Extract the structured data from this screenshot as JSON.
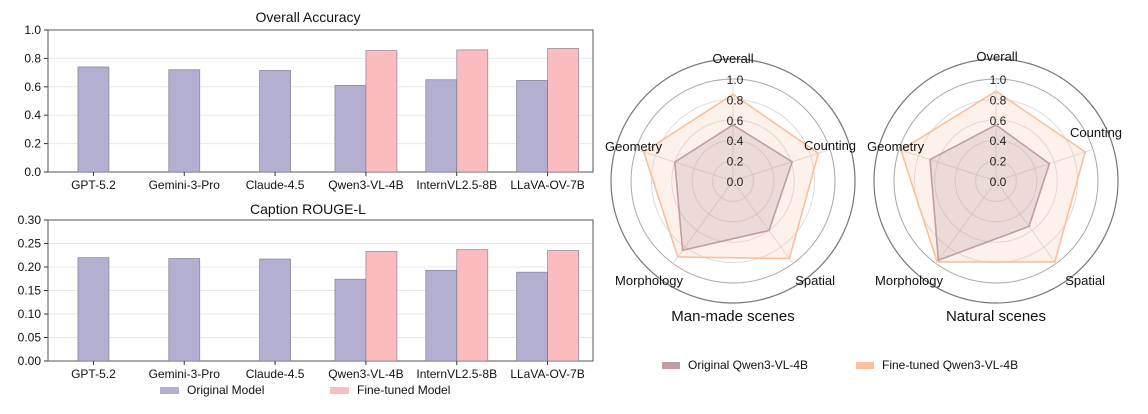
{
  "chart_data": [
    {
      "type": "bar",
      "title": "Overall Accuracy",
      "categories": [
        "GPT-5.2",
        "Gemini-3-Pro",
        "Claude-4.5",
        "Qwen3-VL-4B",
        "InternVL2.5-8B",
        "LLaVA-OV-7B"
      ],
      "series": [
        {
          "name": "Original Model",
          "color": "#b3afd0",
          "values": [
            0.74,
            0.72,
            0.715,
            0.61,
            0.65,
            0.645
          ]
        },
        {
          "name": "Fine-tuned Model",
          "color": "#fbbcbf",
          "values": [
            null,
            null,
            null,
            0.855,
            0.86,
            0.87
          ]
        }
      ],
      "ylim": [
        0,
        1.0
      ],
      "yticks": [
        "0.0",
        "0.2",
        "0.4",
        "0.6",
        "0.8",
        "1.0"
      ],
      "ytick_values": [
        0,
        0.2,
        0.4,
        0.6,
        0.8,
        1.0
      ]
    },
    {
      "type": "bar",
      "title": "Caption ROUGE-L",
      "categories": [
        "GPT-5.2",
        "Gemini-3-Pro",
        "Claude-4.5",
        "Qwen3-VL-4B",
        "InternVL2.5-8B",
        "LLaVA-OV-7B"
      ],
      "series": [
        {
          "name": "Original Model",
          "color": "#b3afd0",
          "values": [
            0.22,
            0.218,
            0.217,
            0.174,
            0.193,
            0.189
          ]
        },
        {
          "name": "Fine-tuned Model",
          "color": "#fbbcbf",
          "values": [
            null,
            null,
            null,
            0.233,
            0.237,
            0.235
          ]
        }
      ],
      "ylim": [
        0,
        0.3
      ],
      "yticks": [
        "0.00",
        "0.05",
        "0.10",
        "0.15",
        "0.20",
        "0.25",
        "0.30"
      ],
      "ytick_values": [
        0,
        0.05,
        0.1,
        0.15,
        0.2,
        0.25,
        0.3
      ]
    },
    {
      "type": "radar",
      "title": "Man-made scenes",
      "axes": [
        "Overall",
        "Counting",
        "Spatial",
        "Morphology",
        "Geometry"
      ],
      "rlim": [
        0,
        1.0
      ],
      "rticks": [
        "0.0",
        "0.2",
        "0.4",
        "0.6",
        "0.8",
        "1.0"
      ],
      "rtick_values": [
        0,
        0.2,
        0.4,
        0.6,
        0.8,
        1.0
      ],
      "series": [
        {
          "name": "Original Qwen3-VL-4B",
          "color": "#bf9ea4",
          "values": [
            0.55,
            0.61,
            0.6,
            0.84,
            0.6
          ]
        },
        {
          "name": "Fine-tuned Qwen3-VL-4B",
          "color": "#f9c09b",
          "values": [
            0.85,
            0.88,
            0.94,
            0.92,
            0.92
          ]
        }
      ]
    },
    {
      "type": "radar",
      "title": "Natural scenes",
      "axes": [
        "Overall",
        "Counting",
        "Spatial",
        "Morphology",
        "Geometry"
      ],
      "rlim": [
        0,
        1.0
      ],
      "rticks": [
        "0.0",
        "0.2",
        "0.4",
        "0.6",
        "0.8",
        "1.0"
      ],
      "rtick_values": [
        0,
        0.2,
        0.4,
        0.6,
        0.8,
        1.0
      ],
      "series": [
        {
          "name": "Original Qwen3-VL-4B",
          "color": "#bf9ea4",
          "values": [
            0.55,
            0.55,
            0.55,
            0.96,
            0.68
          ]
        },
        {
          "name": "Fine-tuned Qwen3-VL-4B",
          "color": "#f9c09b",
          "values": [
            0.88,
            0.92,
            0.98,
            0.98,
            0.98
          ]
        }
      ]
    }
  ],
  "legends": {
    "bar": [
      "Original Model",
      "Fine-tuned Model"
    ],
    "radar": [
      "Original Qwen3-VL-4B",
      "Fine-tuned Qwen3-VL-4B"
    ]
  }
}
